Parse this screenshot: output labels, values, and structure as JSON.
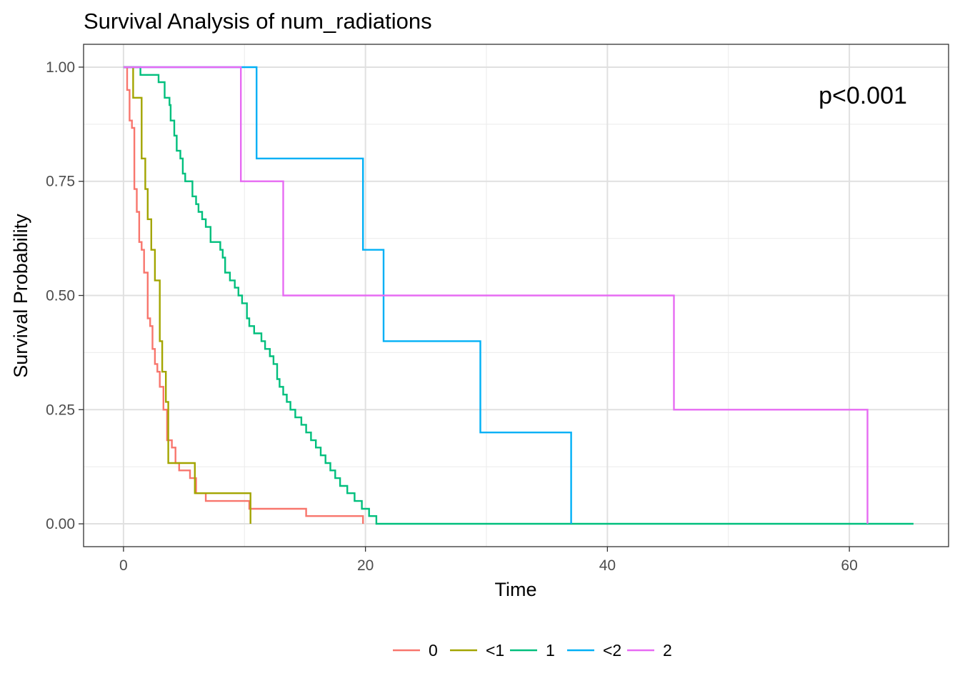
{
  "chart_data": {
    "type": "line",
    "step": true,
    "title": "Survival Analysis of num_radiations",
    "xlabel": "Time",
    "ylabel": "Survival Probability",
    "xlim": [
      -3.3,
      68.2
    ],
    "ylim": [
      -0.05,
      1.05
    ],
    "xticks": [
      0,
      20,
      40,
      60
    ],
    "yticks": [
      0,
      0.25,
      0.5,
      0.75,
      1.0
    ],
    "xtick_labels": [
      "0",
      "20",
      "40",
      "60"
    ],
    "ytick_labels": [
      "0.00",
      "0.25",
      "0.50",
      "0.75",
      "1.00"
    ],
    "grid": true,
    "legend_position": "bottom",
    "annotation": "p<0.001",
    "series": [
      {
        "name": "0",
        "color": "#F8766D",
        "points": [
          [
            0,
            1.0
          ],
          [
            0.3,
            0.95
          ],
          [
            0.5,
            0.883
          ],
          [
            0.7,
            0.867
          ],
          [
            0.9,
            0.733
          ],
          [
            1.1,
            0.683
          ],
          [
            1.3,
            0.617
          ],
          [
            1.5,
            0.6
          ],
          [
            1.7,
            0.55
          ],
          [
            2.0,
            0.45
          ],
          [
            2.2,
            0.433
          ],
          [
            2.4,
            0.383
          ],
          [
            2.6,
            0.35
          ],
          [
            2.8,
            0.333
          ],
          [
            3.0,
            0.3
          ],
          [
            3.3,
            0.25
          ],
          [
            3.6,
            0.183
          ],
          [
            4.0,
            0.167
          ],
          [
            4.3,
            0.133
          ],
          [
            4.6,
            0.117
          ],
          [
            5.5,
            0.1
          ],
          [
            6.0,
            0.067
          ],
          [
            6.8,
            0.05
          ],
          [
            10.4,
            0.033
          ],
          [
            15.1,
            0.017
          ],
          [
            19.8,
            0.0
          ]
        ]
      },
      {
        "name": "<1",
        "color": "#A3A500",
        "points": [
          [
            0,
            1.0
          ],
          [
            0.8,
            0.933
          ],
          [
            1.5,
            0.8
          ],
          [
            1.8,
            0.733
          ],
          [
            2.0,
            0.667
          ],
          [
            2.3,
            0.6
          ],
          [
            2.6,
            0.533
          ],
          [
            3.0,
            0.4
          ],
          [
            3.2,
            0.333
          ],
          [
            3.5,
            0.267
          ],
          [
            3.7,
            0.133
          ],
          [
            5.9,
            0.067
          ],
          [
            10.5,
            0.0
          ]
        ]
      },
      {
        "name": "1",
        "color": "#00BF7D",
        "points": [
          [
            0,
            1.0
          ],
          [
            1.4,
            0.983
          ],
          [
            2.9,
            0.967
          ],
          [
            3.4,
            0.933
          ],
          [
            3.8,
            0.917
          ],
          [
            3.9,
            0.883
          ],
          [
            4.2,
            0.85
          ],
          [
            4.4,
            0.817
          ],
          [
            4.7,
            0.8
          ],
          [
            4.9,
            0.767
          ],
          [
            5.1,
            0.75
          ],
          [
            5.7,
            0.717
          ],
          [
            6.0,
            0.7
          ],
          [
            6.2,
            0.683
          ],
          [
            6.5,
            0.667
          ],
          [
            6.8,
            0.65
          ],
          [
            7.2,
            0.617
          ],
          [
            8.0,
            0.6
          ],
          [
            8.2,
            0.583
          ],
          [
            8.4,
            0.55
          ],
          [
            8.8,
            0.533
          ],
          [
            9.2,
            0.517
          ],
          [
            9.5,
            0.5
          ],
          [
            9.8,
            0.483
          ],
          [
            10.2,
            0.45
          ],
          [
            10.4,
            0.433
          ],
          [
            10.8,
            0.417
          ],
          [
            11.4,
            0.4
          ],
          [
            11.7,
            0.383
          ],
          [
            12.1,
            0.367
          ],
          [
            12.4,
            0.35
          ],
          [
            12.7,
            0.317
          ],
          [
            12.9,
            0.3
          ],
          [
            13.2,
            0.283
          ],
          [
            13.5,
            0.267
          ],
          [
            13.8,
            0.25
          ],
          [
            14.2,
            0.233
          ],
          [
            14.7,
            0.217
          ],
          [
            15.1,
            0.2
          ],
          [
            15.5,
            0.183
          ],
          [
            15.9,
            0.167
          ],
          [
            16.3,
            0.15
          ],
          [
            16.7,
            0.133
          ],
          [
            17.1,
            0.117
          ],
          [
            17.5,
            0.1
          ],
          [
            17.9,
            0.083
          ],
          [
            18.5,
            0.067
          ],
          [
            19.1,
            0.05
          ],
          [
            19.7,
            0.033
          ],
          [
            20.3,
            0.017
          ],
          [
            20.9,
            0.0
          ],
          [
            21.5,
            0.0
          ],
          [
            22.1,
            0.0
          ],
          [
            22.7,
            0.0
          ],
          [
            23.3,
            0.0
          ],
          [
            23.9,
            0.0
          ],
          [
            24.5,
            0.0
          ],
          [
            25.1,
            0.0
          ],
          [
            25.7,
            0.0
          ],
          [
            26.3,
            0.0
          ],
          [
            26.9,
            0.0
          ],
          [
            27.5,
            0.0
          ],
          [
            28.1,
            0.0
          ],
          [
            28.7,
            0.0
          ],
          [
            29.3,
            0.0
          ],
          [
            29.9,
            0.0
          ],
          [
            30.5,
            0.0
          ],
          [
            31.1,
            0.0
          ],
          [
            31.7,
            0.0
          ],
          [
            32.3,
            0.0
          ],
          [
            32.9,
            0.0
          ],
          [
            33.5,
            0.0
          ],
          [
            34.1,
            0.0
          ],
          [
            34.7,
            0.0
          ],
          [
            35.3,
            0.0
          ],
          [
            35.9,
            0.0
          ],
          [
            36.5,
            0.0
          ],
          [
            37.1,
            0.0
          ],
          [
            37.7,
            0.0
          ],
          [
            38.3,
            0.0
          ],
          [
            38.9,
            0.0
          ],
          [
            39.5,
            0.0
          ],
          [
            40.1,
            0.0
          ],
          [
            40.7,
            0.0
          ],
          [
            41.3,
            0.0
          ],
          [
            41.9,
            0.0
          ],
          [
            42.5,
            0.0
          ],
          [
            43.1,
            0.0
          ],
          [
            43.7,
            0.0
          ],
          [
            44.3,
            0.0
          ],
          [
            44.9,
            0.0
          ],
          [
            45.5,
            0.0
          ],
          [
            46.1,
            0.0
          ],
          [
            46.7,
            0.0
          ],
          [
            47.3,
            0.0
          ],
          [
            47.9,
            0.0
          ],
          [
            48.5,
            0.0
          ],
          [
            49.1,
            0.0
          ],
          [
            49.7,
            0.0
          ],
          [
            50.3,
            0.0
          ],
          [
            50.9,
            0.0
          ],
          [
            51.5,
            0.0
          ],
          [
            52.1,
            0.0
          ],
          [
            52.7,
            0.0
          ],
          [
            53.3,
            0.0
          ],
          [
            53.9,
            0.0
          ],
          [
            54.5,
            0.0
          ],
          [
            55.1,
            0.0
          ],
          [
            55.7,
            0.0
          ],
          [
            56.3,
            0.0
          ],
          [
            56.9,
            0.0
          ],
          [
            57.5,
            0.0
          ],
          [
            58.1,
            0.0
          ],
          [
            58.7,
            0.0
          ],
          [
            59.3,
            0.0
          ],
          [
            59.9,
            0.0
          ],
          [
            60.5,
            0.0
          ],
          [
            61.1,
            0.0
          ],
          [
            61.7,
            0.0
          ],
          [
            62.3,
            0.0
          ],
          [
            62.9,
            0.0
          ],
          [
            63.5,
            0.0
          ],
          [
            64.1,
            0.0
          ],
          [
            64.7,
            0.0
          ],
          [
            65.3,
            0.0
          ]
        ]
      },
      {
        "name": "<2",
        "color": "#00B0F6",
        "points": [
          [
            0,
            1.0
          ],
          [
            11.0,
            0.8
          ],
          [
            19.8,
            0.6
          ],
          [
            21.5,
            0.4
          ],
          [
            29.5,
            0.2
          ],
          [
            37.0,
            0.0
          ]
        ]
      },
      {
        "name": "2",
        "color": "#E76BF3",
        "points": [
          [
            0,
            1.0
          ],
          [
            9.7,
            0.75
          ],
          [
            13.2,
            0.5
          ],
          [
            45.5,
            0.25
          ],
          [
            61.5,
            0.0
          ]
        ]
      }
    ]
  }
}
